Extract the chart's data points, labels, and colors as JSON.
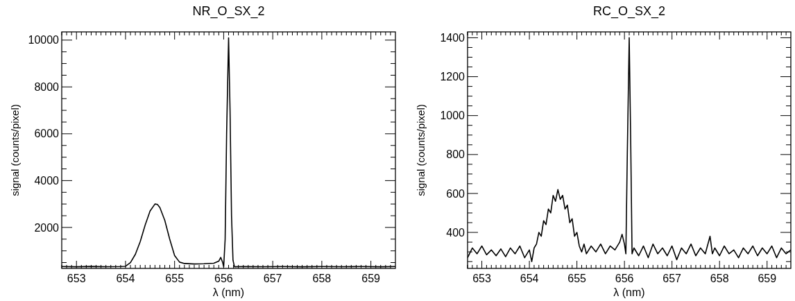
{
  "chart_data": [
    {
      "type": "line",
      "title": "NR_O_SX_2",
      "xlabel": "λ (nm)",
      "ylabel": "signal (counts/pixel)",
      "xlim": [
        652.7,
        659.5
      ],
      "ylim": [
        250,
        10350
      ],
      "xticks": [
        {
          "value": 652.7,
          "label": null
        },
        {
          "value": 652.8,
          "label": null
        },
        {
          "value": 652.9,
          "label": null
        },
        653,
        {
          "value": 653.1,
          "label": null
        },
        {
          "value": 653.2,
          "label": null
        },
        {
          "value": 653.3,
          "label": null
        },
        {
          "value": 653.4,
          "label": null
        },
        {
          "value": 653.5,
          "label": null
        },
        {
          "value": 653.6,
          "label": null
        },
        {
          "value": 653.7,
          "label": null
        },
        {
          "value": 653.8,
          "label": null
        },
        {
          "value": 653.9,
          "label": null
        },
        654,
        {
          "value": 654.1,
          "label": null
        },
        {
          "value": 654.2,
          "label": null
        },
        {
          "value": 654.3,
          "label": null
        },
        {
          "value": 654.4,
          "label": null
        },
        {
          "value": 654.5,
          "label": null
        },
        {
          "value": 654.6,
          "label": null
        },
        {
          "value": 654.7,
          "label": null
        },
        {
          "value": 654.8,
          "label": null
        },
        {
          "value": 654.9,
          "label": null
        },
        655,
        {
          "value": 655.1,
          "label": null
        },
        {
          "value": 655.2,
          "label": null
        },
        {
          "value": 655.3,
          "label": null
        },
        {
          "value": 655.4,
          "label": null
        },
        {
          "value": 655.5,
          "label": null
        },
        {
          "value": 655.6,
          "label": null
        },
        {
          "value": 655.7,
          "label": null
        },
        {
          "value": 655.8,
          "label": null
        },
        {
          "value": 655.9,
          "label": null
        },
        656,
        {
          "value": 656.1,
          "label": null
        },
        {
          "value": 656.2,
          "label": null
        },
        {
          "value": 656.3,
          "label": null
        },
        {
          "value": 656.4,
          "label": null
        },
        {
          "value": 656.5,
          "label": null
        },
        {
          "value": 656.6,
          "label": null
        },
        {
          "value": 656.7,
          "label": null
        },
        {
          "value": 656.8,
          "label": null
        },
        {
          "value": 656.9,
          "label": null
        },
        657,
        {
          "value": 657.1,
          "label": null
        },
        {
          "value": 657.2,
          "label": null
        },
        {
          "value": 657.3,
          "label": null
        },
        {
          "value": 657.4,
          "label": null
        },
        {
          "value": 657.5,
          "label": null
        },
        {
          "value": 657.6,
          "label": null
        },
        {
          "value": 657.7,
          "label": null
        },
        {
          "value": 657.8,
          "label": null
        },
        {
          "value": 657.9,
          "label": null
        },
        658,
        {
          "value": 658.1,
          "label": null
        },
        {
          "value": 658.2,
          "label": null
        },
        {
          "value": 658.3,
          "label": null
        },
        {
          "value": 658.4,
          "label": null
        },
        {
          "value": 658.5,
          "label": null
        },
        {
          "value": 658.6,
          "label": null
        },
        {
          "value": 658.7,
          "label": null
        },
        {
          "value": 658.8,
          "label": null
        },
        {
          "value": 658.9,
          "label": null
        },
        659,
        {
          "value": 659.1,
          "label": null
        },
        {
          "value": 659.2,
          "label": null
        },
        {
          "value": 659.3,
          "label": null
        },
        {
          "value": 659.4,
          "label": null
        }
      ],
      "yticks": [
        {
          "value": 500,
          "label": null
        },
        {
          "value": 1000,
          "label": null
        },
        {
          "value": 1500,
          "label": null
        },
        2000,
        {
          "value": 2500,
          "label": null
        },
        {
          "value": 3000,
          "label": null
        },
        {
          "value": 3500,
          "label": null
        },
        4000,
        {
          "value": 4500,
          "label": null
        },
        {
          "value": 5000,
          "label": null
        },
        {
          "value": 5500,
          "label": null
        },
        6000,
        {
          "value": 6500,
          "label": null
        },
        {
          "value": 7000,
          "label": null
        },
        {
          "value": 7500,
          "label": null
        },
        8000,
        {
          "value": 8500,
          "label": null
        },
        {
          "value": 9000,
          "label": null
        },
        {
          "value": 9500,
          "label": null
        },
        10000
      ],
      "series": [
        {
          "color": "#000000",
          "x": [
            652.7,
            653.0,
            653.3,
            653.6,
            653.9,
            654.0,
            654.1,
            654.2,
            654.3,
            654.4,
            654.5,
            654.6,
            654.65,
            654.7,
            654.8,
            654.9,
            655.0,
            655.1,
            655.2,
            655.4,
            655.6,
            655.8,
            655.9,
            655.94,
            655.98,
            656.0,
            656.03,
            656.06,
            656.1,
            656.13,
            656.16,
            656.19,
            656.22,
            656.4,
            656.8,
            657.2,
            657.6,
            658.0,
            658.4,
            658.8,
            659.2,
            659.5
          ],
          "values": [
            330,
            320,
            335,
            325,
            330,
            340,
            500,
            850,
            1400,
            2100,
            2700,
            3000,
            2980,
            2850,
            2300,
            1500,
            800,
            520,
            460,
            440,
            450,
            470,
            560,
            720,
            500,
            320,
            1500,
            6000,
            10100,
            7000,
            2500,
            600,
            320,
            330,
            325,
            330,
            320,
            330,
            325,
            330,
            320,
            330
          ]
        }
      ]
    },
    {
      "type": "line",
      "title": "RC_O_SX_2",
      "xlabel": "λ (nm)",
      "ylabel": "signal (counts/pixel)",
      "xlim": [
        652.7,
        659.5
      ],
      "ylim": [
        215,
        1430
      ],
      "xticks": [
        {
          "value": 652.7,
          "label": null
        },
        {
          "value": 652.8,
          "label": null
        },
        {
          "value": 652.9,
          "label": null
        },
        653,
        {
          "value": 653.1,
          "label": null
        },
        {
          "value": 653.2,
          "label": null
        },
        {
          "value": 653.3,
          "label": null
        },
        {
          "value": 653.4,
          "label": null
        },
        {
          "value": 653.5,
          "label": null
        },
        {
          "value": 653.6,
          "label": null
        },
        {
          "value": 653.7,
          "label": null
        },
        {
          "value": 653.8,
          "label": null
        },
        {
          "value": 653.9,
          "label": null
        },
        654,
        {
          "value": 654.1,
          "label": null
        },
        {
          "value": 654.2,
          "label": null
        },
        {
          "value": 654.3,
          "label": null
        },
        {
          "value": 654.4,
          "label": null
        },
        {
          "value": 654.5,
          "label": null
        },
        {
          "value": 654.6,
          "label": null
        },
        {
          "value": 654.7,
          "label": null
        },
        {
          "value": 654.8,
          "label": null
        },
        {
          "value": 654.9,
          "label": null
        },
        655,
        {
          "value": 655.1,
          "label": null
        },
        {
          "value": 655.2,
          "label": null
        },
        {
          "value": 655.3,
          "label": null
        },
        {
          "value": 655.4,
          "label": null
        },
        {
          "value": 655.5,
          "label": null
        },
        {
          "value": 655.6,
          "label": null
        },
        {
          "value": 655.7,
          "label": null
        },
        {
          "value": 655.8,
          "label": null
        },
        {
          "value": 655.9,
          "label": null
        },
        656,
        {
          "value": 656.1,
          "label": null
        },
        {
          "value": 656.2,
          "label": null
        },
        {
          "value": 656.3,
          "label": null
        },
        {
          "value": 656.4,
          "label": null
        },
        {
          "value": 656.5,
          "label": null
        },
        {
          "value": 656.6,
          "label": null
        },
        {
          "value": 656.7,
          "label": null
        },
        {
          "value": 656.8,
          "label": null
        },
        {
          "value": 656.9,
          "label": null
        },
        657,
        {
          "value": 657.1,
          "label": null
        },
        {
          "value": 657.2,
          "label": null
        },
        {
          "value": 657.3,
          "label": null
        },
        {
          "value": 657.4,
          "label": null
        },
        {
          "value": 657.5,
          "label": null
        },
        {
          "value": 657.6,
          "label": null
        },
        {
          "value": 657.7,
          "label": null
        },
        {
          "value": 657.8,
          "label": null
        },
        {
          "value": 657.9,
          "label": null
        },
        658,
        {
          "value": 658.1,
          "label": null
        },
        {
          "value": 658.2,
          "label": null
        },
        {
          "value": 658.3,
          "label": null
        },
        {
          "value": 658.4,
          "label": null
        },
        {
          "value": 658.5,
          "label": null
        },
        {
          "value": 658.6,
          "label": null
        },
        {
          "value": 658.7,
          "label": null
        },
        {
          "value": 658.8,
          "label": null
        },
        {
          "value": 658.9,
          "label": null
        },
        659,
        {
          "value": 659.1,
          "label": null
        },
        {
          "value": 659.2,
          "label": null
        },
        {
          "value": 659.3,
          "label": null
        },
        {
          "value": 659.4,
          "label": null
        }
      ],
      "yticks": [
        {
          "value": 250,
          "label": null
        },
        {
          "value": 300,
          "label": null
        },
        {
          "value": 350,
          "label": null
        },
        400,
        {
          "value": 450,
          "label": null
        },
        {
          "value": 500,
          "label": null
        },
        {
          "value": 550,
          "label": null
        },
        600,
        {
          "value": 650,
          "label": null
        },
        {
          "value": 700,
          "label": null
        },
        {
          "value": 750,
          "label": null
        },
        800,
        {
          "value": 850,
          "label": null
        },
        {
          "value": 900,
          "label": null
        },
        {
          "value": 950,
          "label": null
        },
        1000,
        {
          "value": 1050,
          "label": null
        },
        {
          "value": 1100,
          "label": null
        },
        {
          "value": 1150,
          "label": null
        },
        1200,
        {
          "value": 1250,
          "label": null
        },
        {
          "value": 1300,
          "label": null
        },
        {
          "value": 1350,
          "label": null
        },
        1400
      ],
      "series": [
        {
          "color": "#000000",
          "x": [
            652.7,
            652.8,
            652.9,
            653.0,
            653.1,
            653.2,
            653.3,
            653.4,
            653.5,
            653.6,
            653.7,
            653.8,
            653.9,
            654.0,
            654.05,
            654.1,
            654.15,
            654.2,
            654.25,
            654.3,
            654.35,
            654.4,
            654.45,
            654.5,
            654.55,
            654.6,
            654.65,
            654.7,
            654.75,
            654.8,
            654.85,
            654.9,
            654.95,
            655.0,
            655.05,
            655.1,
            655.15,
            655.2,
            655.3,
            655.4,
            655.5,
            655.6,
            655.7,
            655.8,
            655.9,
            655.95,
            656.0,
            656.03,
            656.06,
            656.1,
            656.13,
            656.16,
            656.2,
            656.3,
            656.4,
            656.5,
            656.6,
            656.7,
            656.8,
            656.9,
            657.0,
            657.1,
            657.2,
            657.3,
            657.4,
            657.5,
            657.6,
            657.7,
            657.8,
            657.85,
            657.9,
            658.0,
            658.1,
            658.2,
            658.3,
            658.4,
            658.5,
            658.6,
            658.7,
            658.8,
            658.9,
            659.0,
            659.1,
            659.2,
            659.3,
            659.4,
            659.5
          ],
          "values": [
            270,
            320,
            290,
            330,
            285,
            310,
            280,
            315,
            275,
            320,
            290,
            330,
            270,
            310,
            250,
            320,
            340,
            400,
            380,
            460,
            440,
            520,
            500,
            590,
            560,
            620,
            570,
            590,
            520,
            540,
            450,
            470,
            380,
            400,
            330,
            300,
            340,
            290,
            330,
            300,
            340,
            290,
            330,
            310,
            350,
            390,
            340,
            290,
            800,
            1400,
            900,
            290,
            320,
            280,
            330,
            270,
            340,
            290,
            320,
            280,
            330,
            260,
            320,
            290,
            340,
            280,
            320,
            290,
            380,
            290,
            320,
            280,
            330,
            290,
            310,
            270,
            320,
            290,
            330,
            280,
            320,
            290,
            330,
            270,
            320,
            290,
            310
          ]
        }
      ]
    }
  ]
}
